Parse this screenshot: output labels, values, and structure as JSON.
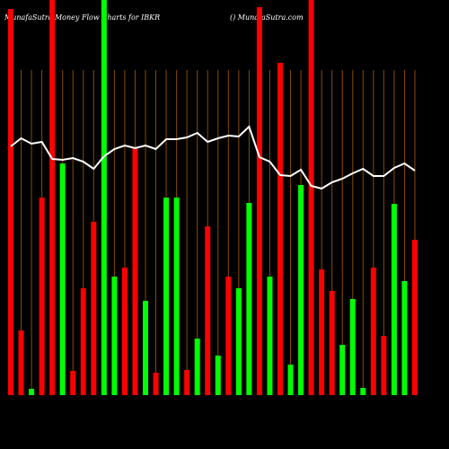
{
  "chart_data": {
    "type": "bar",
    "title": "MunafaSutra  Money Flow  Charts for IBKR",
    "subtitle": "() MunafaSutra.com",
    "values": [
      430,
      72,
      7,
      220,
      440,
      258,
      27,
      119,
      193,
      440,
      132,
      142,
      275,
      105,
      25,
      220,
      220,
      28,
      63,
      188,
      44,
      132,
      119,
      214,
      432,
      132,
      370,
      34,
      234,
      440,
      140,
      116,
      56,
      107,
      8,
      142,
      66,
      213,
      127,
      173
    ],
    "colors": [
      "#ff0000",
      "#ff0000",
      "#00ff00",
      "#ff0000",
      "#ff0000",
      "#00ff00",
      "#ff0000",
      "#ff0000",
      "#ff0000",
      "#00ff00",
      "#00ff00",
      "#ff0000",
      "#ff0000",
      "#00ff00",
      "#ff0000",
      "#00ff00",
      "#00ff00",
      "#ff0000",
      "#00ff00",
      "#ff0000",
      "#00ff00",
      "#ff0000",
      "#00ff00",
      "#00ff00",
      "#ff0000",
      "#00ff00",
      "#ff0000",
      "#00ff00",
      "#00ff00",
      "#ff0000",
      "#ff0000",
      "#ff0000",
      "#00ff00",
      "#00ff00",
      "#00ff00",
      "#ff0000",
      "#ff0000",
      "#00ff00",
      "#00ff00",
      "#ff0000"
    ],
    "line_values": [
      277,
      286,
      280,
      282,
      263,
      262,
      264,
      260,
      252,
      266,
      274,
      278,
      275,
      278,
      274,
      285,
      285,
      287,
      292,
      282,
      286,
      289,
      288,
      299,
      265,
      260,
      245,
      244,
      251,
      233,
      230,
      237,
      241,
      247,
      252,
      244,
      244,
      253,
      258,
      250
    ],
    "line_color": "#ffffff",
    "grid_color": "#8b4a00",
    "ylim": [
      0,
      440
    ]
  }
}
